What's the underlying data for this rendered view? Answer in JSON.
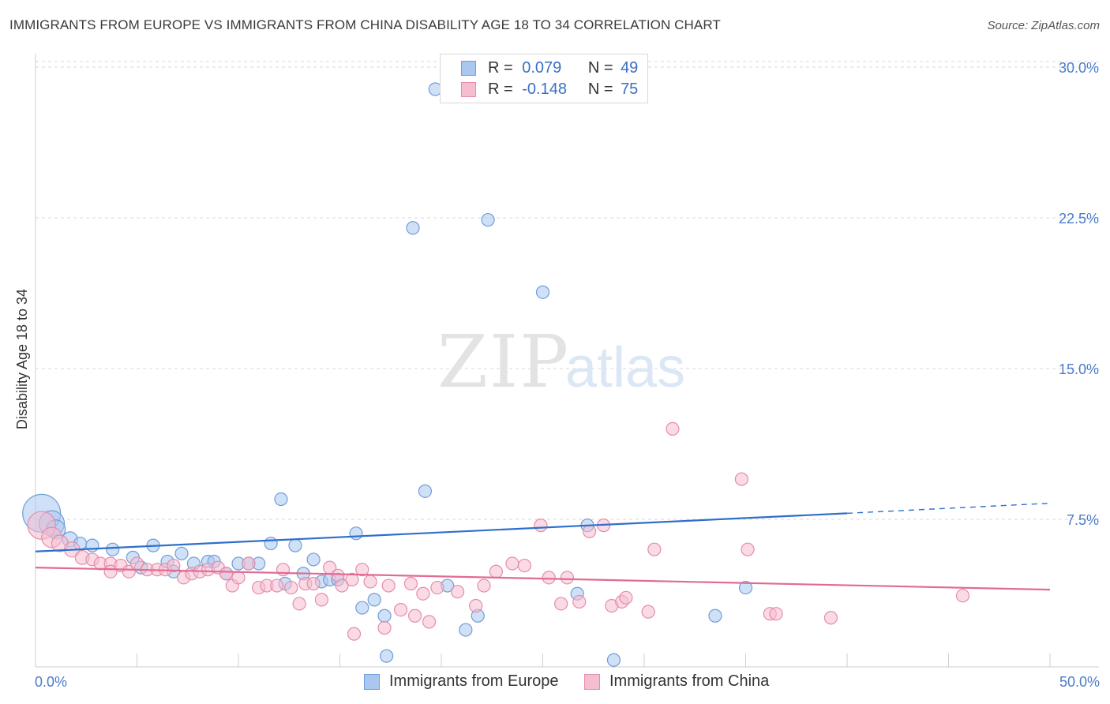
{
  "header": {
    "title": "IMMIGRANTS FROM EUROPE VS IMMIGRANTS FROM CHINA DISABILITY AGE 18 TO 34 CORRELATION CHART",
    "source": "Source: ZipAtlas.com"
  },
  "legend": {
    "europe": {
      "r_label": "R =",
      "r_value": "0.079",
      "n_label": "N =",
      "n_value": "49"
    },
    "china": {
      "r_label": "R =",
      "r_value": "-0.148",
      "n_label": "N =",
      "n_value": "75"
    }
  },
  "bottom_legend": {
    "europe_label": "Immigrants from Europe",
    "china_label": "Immigrants from China"
  },
  "watermark": {
    "zip": "ZIP",
    "atlas": "atlas"
  },
  "colors": {
    "europe_fill": "#a9c7ef",
    "europe_stroke": "#6f9fd8",
    "europe_line": "#2f6fcb",
    "china_fill": "#f5bdd0",
    "china_stroke": "#e58caa",
    "china_line": "#e06b93",
    "grid": "#d9d9d9",
    "tick_text": "#4a7cc9"
  },
  "chart_data": {
    "type": "scatter",
    "title": "IMMIGRANTS FROM EUROPE VS IMMIGRANTS FROM CHINA DISABILITY AGE 18 TO 34 CORRELATION CHART",
    "xlabel": "",
    "ylabel": "Disability Age 18 to 34",
    "xlim": [
      0,
      50
    ],
    "ylim": [
      0,
      30
    ],
    "x_tick_labels": [
      "0.0%",
      "50.0%"
    ],
    "y_ticks": [
      7.5,
      15.0,
      22.5,
      30.0
    ],
    "y_tick_labels": [
      "7.5%",
      "15.0%",
      "22.5%",
      "30.0%"
    ],
    "grid": true,
    "series": [
      {
        "name": "Immigrants from Europe",
        "R": 0.079,
        "N": 49,
        "trend": {
          "x0": 0,
          "y0": 5.9,
          "x1": 40,
          "y1": 7.8,
          "dash_to_x": 50,
          "dash_to_y": 8.3
        },
        "points": [
          [
            0.3,
            7.8,
            3
          ],
          [
            0.8,
            7.3,
            2
          ],
          [
            1.0,
            7.0,
            1.5
          ],
          [
            1.7,
            6.5,
            1.2
          ],
          [
            2.2,
            6.3,
            1
          ],
          [
            2.8,
            6.2,
            1
          ],
          [
            3.8,
            6.0,
            1
          ],
          [
            4.8,
            5.6,
            1
          ],
          [
            5.2,
            5.1,
            1
          ],
          [
            5.8,
            6.2,
            1
          ],
          [
            6.5,
            5.4,
            1
          ],
          [
            6.8,
            4.9,
            1
          ],
          [
            7.2,
            5.8,
            1
          ],
          [
            7.8,
            5.3,
            1
          ],
          [
            8.5,
            5.4,
            1
          ],
          [
            8.8,
            5.4,
            1
          ],
          [
            9.4,
            4.8,
            1
          ],
          [
            10.0,
            5.3,
            1
          ],
          [
            10.5,
            5.3,
            1
          ],
          [
            11.0,
            5.3,
            1
          ],
          [
            11.6,
            6.3,
            1
          ],
          [
            12.1,
            8.5,
            1
          ],
          [
            12.3,
            4.3,
            1
          ],
          [
            12.8,
            6.2,
            1
          ],
          [
            13.2,
            4.8,
            1
          ],
          [
            13.7,
            5.5,
            1
          ],
          [
            14.1,
            4.4,
            1
          ],
          [
            14.5,
            4.5,
            1
          ],
          [
            14.9,
            4.5,
            1
          ],
          [
            15.8,
            6.8,
            1
          ],
          [
            16.1,
            3.1,
            1
          ],
          [
            16.7,
            3.5,
            1
          ],
          [
            17.2,
            2.7,
            1
          ],
          [
            17.3,
            0.7,
            1
          ],
          [
            18.6,
            22.0,
            1
          ],
          [
            19.2,
            8.9,
            1
          ],
          [
            19.7,
            28.9,
            1
          ],
          [
            20.3,
            4.2,
            1
          ],
          [
            21.2,
            2.0,
            1
          ],
          [
            21.8,
            2.7,
            1
          ],
          [
            22.3,
            22.4,
            1
          ],
          [
            25.0,
            18.8,
            1
          ],
          [
            26.7,
            3.8,
            1
          ],
          [
            27.2,
            7.2,
            1
          ],
          [
            28.5,
            0.5,
            1
          ],
          [
            33.5,
            2.7,
            1
          ],
          [
            35.0,
            4.1,
            1
          ]
        ]
      },
      {
        "name": "Immigrants from China",
        "R": -0.148,
        "N": 75,
        "trend": {
          "x0": 0,
          "y0": 5.1,
          "x1": 50,
          "y1": 4.0
        },
        "points": [
          [
            0.3,
            7.2,
            2.2
          ],
          [
            0.8,
            6.6,
            1.6
          ],
          [
            1.2,
            6.3,
            1.3
          ],
          [
            1.8,
            6.0,
            1.2
          ],
          [
            2.3,
            5.6,
            1.1
          ],
          [
            2.8,
            5.5,
            1
          ],
          [
            3.2,
            5.3,
            1
          ],
          [
            3.7,
            5.3,
            1
          ],
          [
            3.7,
            4.9,
            1
          ],
          [
            4.2,
            5.2,
            1
          ],
          [
            4.6,
            4.9,
            1
          ],
          [
            5.0,
            5.3,
            1
          ],
          [
            5.5,
            5.0,
            1
          ],
          [
            6.0,
            5.0,
            1
          ],
          [
            6.4,
            5.0,
            1
          ],
          [
            6.8,
            5.2,
            1
          ],
          [
            7.3,
            4.6,
            1
          ],
          [
            7.7,
            4.8,
            1
          ],
          [
            8.1,
            4.9,
            1
          ],
          [
            8.5,
            5.0,
            1
          ],
          [
            9.0,
            5.1,
            1
          ],
          [
            9.4,
            4.8,
            1
          ],
          [
            9.7,
            4.2,
            1
          ],
          [
            10.0,
            4.6,
            1
          ],
          [
            10.5,
            5.3,
            1
          ],
          [
            11.0,
            4.1,
            1
          ],
          [
            11.4,
            4.2,
            1
          ],
          [
            11.9,
            4.2,
            1
          ],
          [
            12.2,
            5.0,
            1
          ],
          [
            12.6,
            4.1,
            1
          ],
          [
            13.0,
            3.3,
            1
          ],
          [
            13.3,
            4.3,
            1
          ],
          [
            13.7,
            4.3,
            1
          ],
          [
            14.1,
            3.5,
            1
          ],
          [
            14.5,
            5.1,
            1
          ],
          [
            14.9,
            4.7,
            1
          ],
          [
            15.1,
            4.2,
            1
          ],
          [
            15.6,
            4.5,
            1
          ],
          [
            15.7,
            1.8,
            1
          ],
          [
            16.1,
            5.0,
            1
          ],
          [
            16.5,
            4.4,
            1
          ],
          [
            17.2,
            2.1,
            1
          ],
          [
            17.4,
            4.2,
            1
          ],
          [
            18.0,
            3.0,
            1
          ],
          [
            18.5,
            4.3,
            1
          ],
          [
            18.7,
            2.7,
            1
          ],
          [
            19.1,
            3.8,
            1
          ],
          [
            19.4,
            2.4,
            1
          ],
          [
            19.8,
            4.1,
            1
          ],
          [
            20.8,
            3.9,
            1
          ],
          [
            21.7,
            3.2,
            1
          ],
          [
            22.1,
            4.2,
            1
          ],
          [
            22.7,
            4.9,
            1
          ],
          [
            23.5,
            5.3,
            1
          ],
          [
            24.1,
            5.2,
            1
          ],
          [
            24.9,
            7.2,
            1
          ],
          [
            25.3,
            4.6,
            1
          ],
          [
            25.9,
            3.3,
            1
          ],
          [
            26.2,
            4.6,
            1
          ],
          [
            26.8,
            3.4,
            1
          ],
          [
            27.3,
            6.9,
            1
          ],
          [
            28.0,
            7.2,
            1
          ],
          [
            28.4,
            3.2,
            1
          ],
          [
            28.9,
            3.4,
            1
          ],
          [
            29.1,
            3.6,
            1
          ],
          [
            30.2,
            2.9,
            1
          ],
          [
            30.5,
            6.0,
            1
          ],
          [
            31.4,
            12.0,
            1
          ],
          [
            34.8,
            9.5,
            1
          ],
          [
            35.1,
            6.0,
            1
          ],
          [
            36.2,
            2.8,
            1
          ],
          [
            36.5,
            2.8,
            1
          ],
          [
            39.2,
            2.6,
            1
          ],
          [
            45.7,
            3.7,
            1
          ]
        ]
      }
    ]
  }
}
